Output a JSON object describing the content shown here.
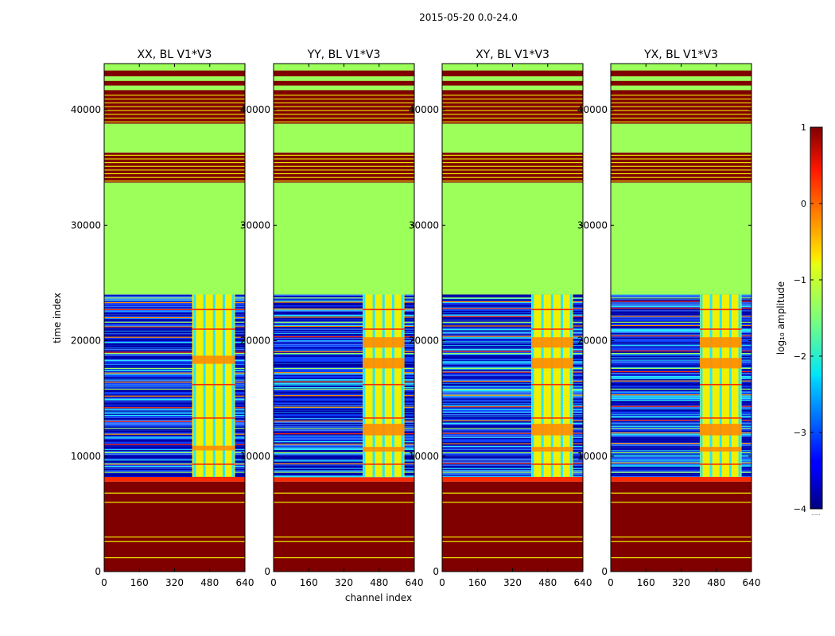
{
  "figure": {
    "suptitle": "2015-05-20 0.0-24.0",
    "colorbar_label": "log₁₀ amplitude",
    "colorbar_min_label": "......"
  },
  "chart_data": {
    "type": "heatmap",
    "panels": [
      {
        "title": "XX, BL V1*V3",
        "variant": 0
      },
      {
        "title": "YY, BL V1*V3",
        "variant": 1
      },
      {
        "title": "XY, BL V1*V3",
        "variant": 2
      },
      {
        "title": "YX, BL V1*V3",
        "variant": 3
      }
    ],
    "xlabel": "channel index",
    "ylabel": "time index",
    "xlim": [
      0,
      640
    ],
    "ylim": [
      0,
      44000
    ],
    "xticks": [
      0,
      160,
      320,
      480,
      640
    ],
    "yticks": [
      0,
      10000,
      20000,
      30000,
      40000
    ],
    "colorscale": "jet",
    "colorbar": {
      "min": -4,
      "max": 1,
      "ticks": [
        -4,
        -3,
        -2,
        -1,
        0,
        1
      ]
    },
    "regions": {
      "saturated_bottom": [
        0,
        7800
      ],
      "saturated_edge": [
        7800,
        8200
      ],
      "data_block": [
        8200,
        24000
      ],
      "flat_block_lower": [
        24000,
        33700
      ],
      "striped_block_1": [
        33700,
        36300
      ],
      "flat_block_upper": [
        36300,
        38800
      ],
      "striped_block_2": [
        38800,
        44000
      ]
    },
    "bright_channels": [
      400,
      600
    ]
  }
}
